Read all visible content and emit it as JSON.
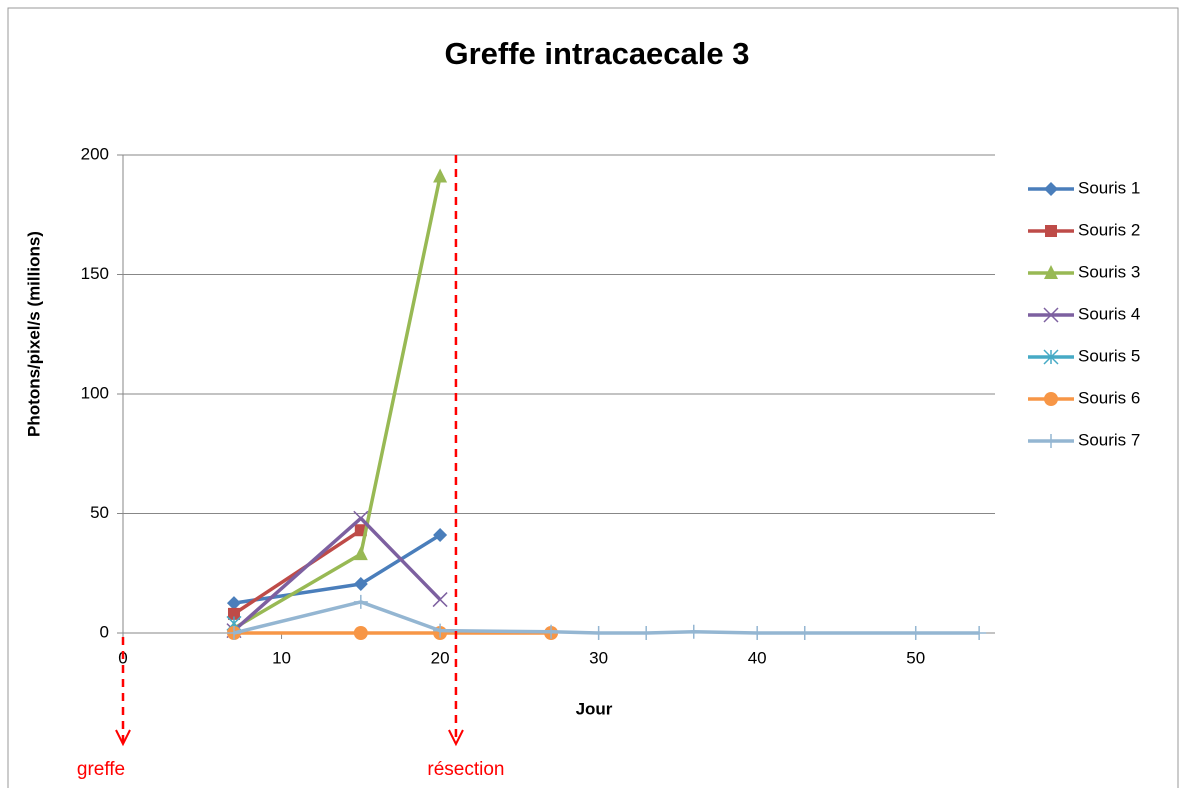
{
  "chart_data": {
    "type": "line",
    "title": "Greffe intracaecale 3",
    "xlabel": "Jour",
    "ylabel": "Photons/pixel/s  (millions)",
    "xlim": [
      0,
      55
    ],
    "xticks": [
      0,
      10,
      20,
      30,
      40,
      50
    ],
    "ylim": [
      0,
      200
    ],
    "yticks": [
      0,
      50,
      100,
      150,
      200
    ],
    "grid": true,
    "legend": "right",
    "series": [
      {
        "name": "Souris 1",
        "color": "#4a7ebb",
        "marker": "diamond",
        "x": [
          7,
          15,
          20
        ],
        "values": [
          12.5,
          20.5,
          41
        ]
      },
      {
        "name": "Souris 2",
        "color": "#be4b48",
        "marker": "square",
        "x": [
          7,
          15
        ],
        "values": [
          8,
          43
        ]
      },
      {
        "name": "Souris 3",
        "color": "#98b954",
        "marker": "triangle",
        "x": [
          7,
          15,
          20
        ],
        "values": [
          2,
          33,
          191
        ]
      },
      {
        "name": "Souris 4",
        "color": "#7d60a0",
        "marker": "x",
        "x": [
          7,
          15,
          20
        ],
        "values": [
          1,
          48,
          14
        ]
      },
      {
        "name": "Souris 5",
        "color": "#46aac5",
        "marker": "star",
        "x": [
          7
        ],
        "values": [
          4
        ]
      },
      {
        "name": "Souris 6",
        "color": "#f79646",
        "marker": "circle",
        "x": [
          7,
          15,
          20,
          27
        ],
        "values": [
          0,
          0,
          0,
          0
        ]
      },
      {
        "name": "Souris 7",
        "color": "#94b6d2",
        "marker": "plus",
        "x": [
          7,
          15,
          20,
          27,
          30,
          33,
          36,
          40,
          43,
          50,
          54
        ],
        "values": [
          0,
          13,
          1,
          0.5,
          0,
          0,
          0.5,
          0,
          0,
          0,
          0
        ]
      }
    ],
    "annotations": [
      {
        "text": "greffe",
        "x": 0
      },
      {
        "text": "résection",
        "x": 21
      }
    ]
  }
}
